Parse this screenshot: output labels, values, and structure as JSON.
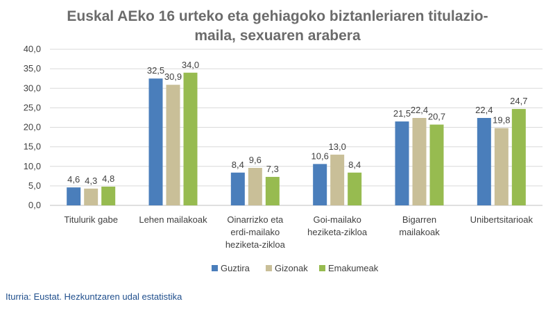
{
  "source": "Iturria: Eustat. Hezkuntzaren udal estatistika",
  "chart_data": {
    "type": "bar",
    "title_lines": [
      "Euskal AEko 16 urteko eta gehiagoko biztanleriaren titulazio-",
      "maila, sexuaren arabera"
    ],
    "categories": [
      [
        "Titulurik gabe"
      ],
      [
        "Lehen mailakoak"
      ],
      [
        "Oinarrizko eta",
        "erdi-mailako",
        "heziketa-zikloa"
      ],
      [
        "Goi-mailako",
        "heziketa-zikloa"
      ],
      [
        "Bigarren",
        "mailakoak"
      ],
      [
        "Unibertsitarioak"
      ]
    ],
    "series": [
      {
        "name": "Guztira",
        "color": "#4a7ebb",
        "values": [
          4.6,
          32.5,
          8.4,
          10.6,
          21.5,
          22.4
        ],
        "labels": [
          "4,6",
          "32,5",
          "8,4",
          "10,6",
          "21,5",
          "22,4"
        ]
      },
      {
        "name": "Gizonak",
        "color": "#c9bf98",
        "values": [
          4.3,
          30.9,
          9.6,
          13.0,
          22.4,
          19.8
        ],
        "labels": [
          "4,3",
          "30,9",
          "9,6",
          "13,0",
          "22,4",
          "19,8"
        ]
      },
      {
        "name": "Emakumeak",
        "color": "#97bb50",
        "values": [
          4.8,
          34.0,
          7.3,
          8.4,
          20.7,
          24.7
        ],
        "labels": [
          "4,8",
          "34,0",
          "7,3",
          "8,4",
          "20,7",
          "24,7"
        ]
      }
    ],
    "yticks": [
      0,
      5,
      10,
      15,
      20,
      25,
      30,
      35,
      40
    ],
    "ytick_labels": [
      "0,0",
      "5,0",
      "10,0",
      "15,0",
      "20,0",
      "25,0",
      "30,0",
      "35,0",
      "40,0"
    ],
    "ylim": [
      0,
      40
    ],
    "xlabel": "",
    "ylabel": "",
    "grid": true,
    "legend_position": "bottom"
  }
}
